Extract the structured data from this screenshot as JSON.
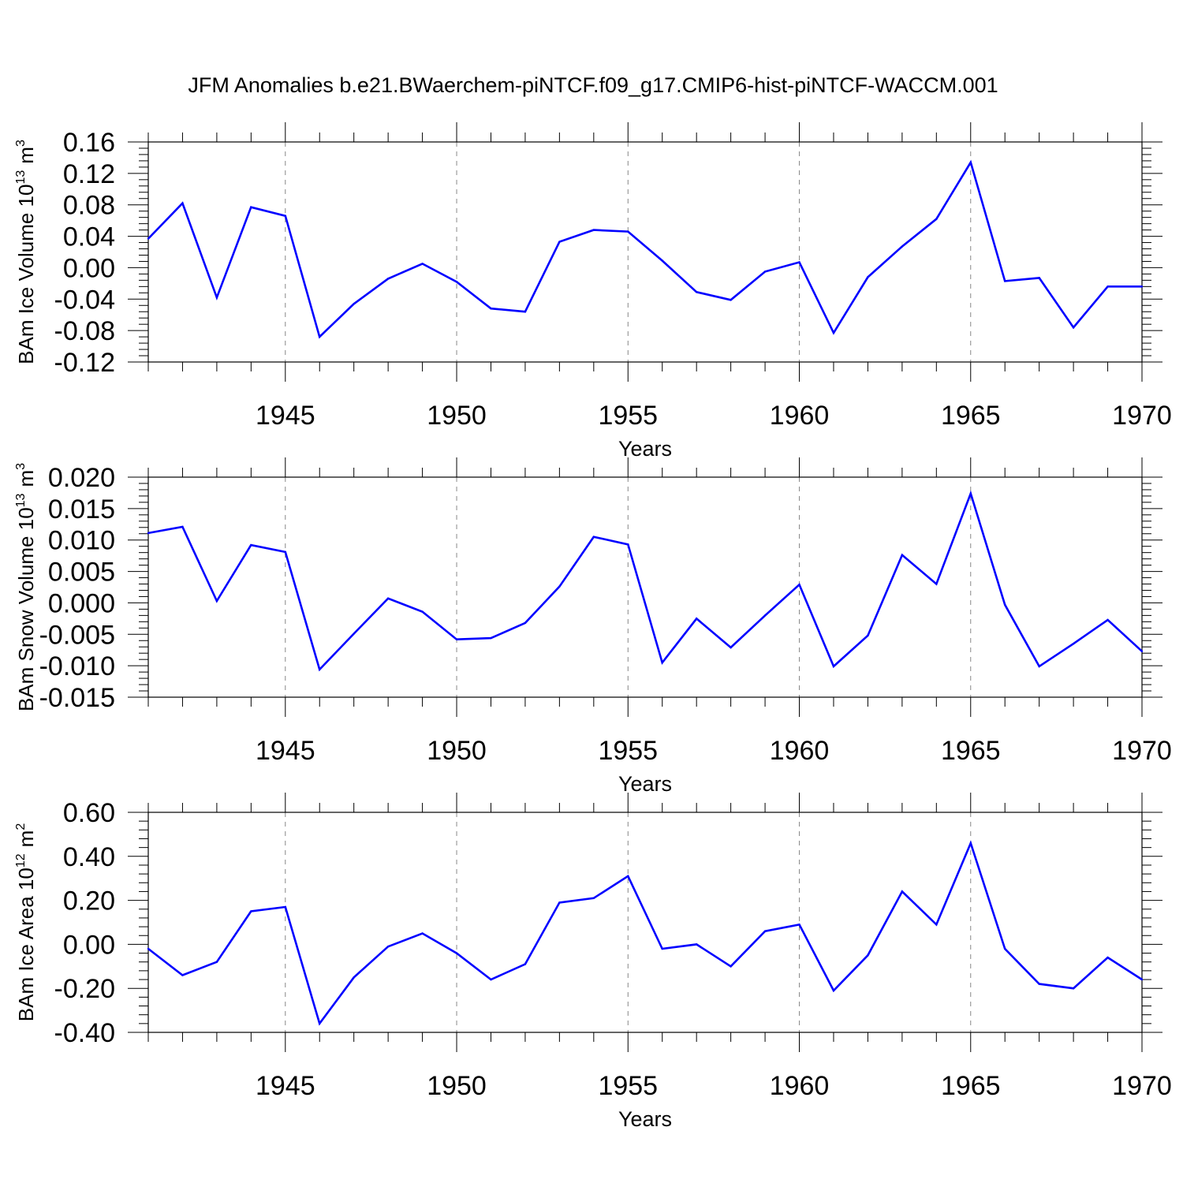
{
  "title": "JFM Anomalies b.e21.BWaerchem-piNTCF.f09_g17.CMIP6-hist-piNTCF-WACCM.001",
  "colors": {
    "line": "#0000ff",
    "axis": "#000000",
    "grid": "#888888"
  },
  "chart_data": [
    {
      "type": "line",
      "ylabel": "BAm Ice Volume 10",
      "ylabel_exp": "13",
      "ylabel_unit": "m",
      "ylabel_unit_exp": "3",
      "xlabel": "Years",
      "xlim": [
        1941,
        1970
      ],
      "ylim": [
        -0.12,
        0.16
      ],
      "xticks": [
        1945,
        1950,
        1955,
        1960,
        1965,
        1970
      ],
      "xtick_labels": [
        "1945",
        "1950",
        "1955",
        "1960",
        "1965",
        "1970"
      ],
      "yticks": [
        -0.12,
        -0.08,
        -0.04,
        0.0,
        0.04,
        0.08,
        0.12,
        0.16
      ],
      "ytick_labels": [
        "-0.12",
        "-0.08",
        "-0.04",
        "0.00",
        "0.04",
        "0.08",
        "0.12",
        "0.16"
      ],
      "grid": "vertical-dashed",
      "x": [
        1941,
        1942,
        1943,
        1944,
        1945,
        1946,
        1947,
        1948,
        1949,
        1950,
        1951,
        1952,
        1953,
        1954,
        1955,
        1956,
        1957,
        1958,
        1959,
        1960,
        1961,
        1962,
        1963,
        1964,
        1965,
        1966,
        1967,
        1968,
        1969,
        1970
      ],
      "values": [
        0.037,
        0.082,
        -0.038,
        0.077,
        0.066,
        -0.088,
        -0.046,
        -0.014,
        0.005,
        -0.018,
        -0.052,
        -0.056,
        0.033,
        0.048,
        0.046,
        0.009,
        -0.031,
        -0.041,
        -0.005,
        0.007,
        -0.083,
        -0.012,
        0.027,
        0.062,
        0.134,
        -0.017,
        -0.013,
        -0.076,
        -0.024,
        -0.024
      ]
    },
    {
      "type": "line",
      "ylabel": "BAm Snow Volume 10",
      "ylabel_exp": "13",
      "ylabel_unit": "m",
      "ylabel_unit_exp": "3",
      "xlabel": "Years",
      "xlim": [
        1941,
        1970
      ],
      "ylim": [
        -0.015,
        0.02
      ],
      "xticks": [
        1945,
        1950,
        1955,
        1960,
        1965,
        1970
      ],
      "xtick_labels": [
        "1945",
        "1950",
        "1955",
        "1960",
        "1965",
        "1970"
      ],
      "yticks": [
        -0.015,
        -0.01,
        -0.005,
        0.0,
        0.005,
        0.01,
        0.015,
        0.02
      ],
      "ytick_labels": [
        "-0.015",
        "-0.010",
        "-0.005",
        "0.000",
        "0.005",
        "0.010",
        "0.015",
        "0.020"
      ],
      "grid": "vertical-dashed",
      "x": [
        1941,
        1942,
        1943,
        1944,
        1945,
        1946,
        1947,
        1948,
        1949,
        1950,
        1951,
        1952,
        1953,
        1954,
        1955,
        1956,
        1957,
        1958,
        1959,
        1960,
        1961,
        1962,
        1963,
        1964,
        1965,
        1966,
        1967,
        1968,
        1969,
        1970
      ],
      "values": [
        0.0111,
        0.0121,
        0.0003,
        0.0092,
        0.0081,
        -0.0106,
        -0.0049,
        0.0007,
        -0.0014,
        -0.0058,
        -0.0056,
        -0.0032,
        0.0026,
        0.0105,
        0.0093,
        -0.0095,
        -0.0025,
        -0.0071,
        -0.002,
        0.0029,
        -0.0101,
        -0.0052,
        0.0076,
        0.003,
        0.0174,
        -0.0003,
        -0.0101,
        -0.0065,
        -0.0027,
        -0.0077
      ]
    },
    {
      "type": "line",
      "ylabel": "BAm Ice Area 10",
      "ylabel_exp": "12",
      "ylabel_unit": "m",
      "ylabel_unit_exp": "2",
      "xlabel": "Years",
      "xlim": [
        1941,
        1970
      ],
      "ylim": [
        -0.4,
        0.6
      ],
      "xticks": [
        1945,
        1950,
        1955,
        1960,
        1965,
        1970
      ],
      "xtick_labels": [
        "1945",
        "1950",
        "1955",
        "1960",
        "1965",
        "1970"
      ],
      "yticks": [
        -0.4,
        -0.2,
        0.0,
        0.2,
        0.4,
        0.6
      ],
      "ytick_labels": [
        "-0.40",
        "-0.20",
        "0.00",
        "0.20",
        "0.40",
        "0.60"
      ],
      "grid": "vertical-dashed",
      "x": [
        1941,
        1942,
        1943,
        1944,
        1945,
        1946,
        1947,
        1948,
        1949,
        1950,
        1951,
        1952,
        1953,
        1954,
        1955,
        1956,
        1957,
        1958,
        1959,
        1960,
        1961,
        1962,
        1963,
        1964,
        1965,
        1966,
        1967,
        1968,
        1969,
        1970
      ],
      "values": [
        -0.02,
        -0.14,
        -0.08,
        0.15,
        0.17,
        -0.36,
        -0.15,
        -0.01,
        0.05,
        -0.04,
        -0.16,
        -0.09,
        0.19,
        0.21,
        0.31,
        -0.02,
        0.0,
        -0.1,
        0.06,
        0.09,
        -0.21,
        -0.05,
        0.24,
        0.09,
        0.46,
        -0.02,
        -0.18,
        -0.2,
        -0.06,
        -0.16
      ]
    }
  ]
}
